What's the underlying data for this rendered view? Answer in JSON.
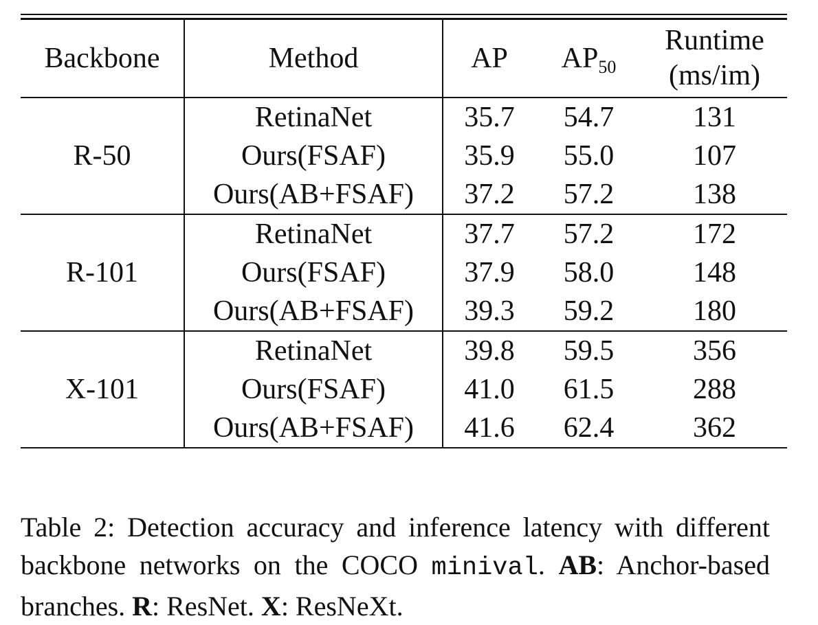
{
  "table": {
    "headers": {
      "backbone": "Backbone",
      "method": "Method",
      "ap": "AP",
      "ap50_base": "AP",
      "ap50_sub": "50",
      "runtime_line1": "Runtime",
      "runtime_line2": "(ms/im)"
    },
    "groups": [
      {
        "backbone": "R-50",
        "rows": [
          {
            "method": "RetinaNet",
            "ap": "35.7",
            "ap50": "54.7",
            "runtime": "131"
          },
          {
            "method": "Ours(FSAF)",
            "ap": "35.9",
            "ap50": "55.0",
            "runtime": "107"
          },
          {
            "method": "Ours(AB+FSAF)",
            "ap": "37.2",
            "ap50": "57.2",
            "runtime": "138"
          }
        ]
      },
      {
        "backbone": "R-101",
        "rows": [
          {
            "method": "RetinaNet",
            "ap": "37.7",
            "ap50": "57.2",
            "runtime": "172"
          },
          {
            "method": "Ours(FSAF)",
            "ap": "37.9",
            "ap50": "58.0",
            "runtime": "148"
          },
          {
            "method": "Ours(AB+FSAF)",
            "ap": "39.3",
            "ap50": "59.2",
            "runtime": "180"
          }
        ]
      },
      {
        "backbone": "X-101",
        "rows": [
          {
            "method": "RetinaNet",
            "ap": "39.8",
            "ap50": "59.5",
            "runtime": "356"
          },
          {
            "method": "Ours(FSAF)",
            "ap": "41.0",
            "ap50": "61.5",
            "runtime": "288"
          },
          {
            "method": "Ours(AB+FSAF)",
            "ap": "41.6",
            "ap50": "62.4",
            "runtime": "362"
          }
        ]
      }
    ]
  },
  "caption": {
    "part1": "Table 2: Detection accuracy and inference latency with different backbone networks on the COCO ",
    "mono": "minival",
    "part2": ". ",
    "ab_bold": "AB",
    "ab_text": ": Anchor-based branches. ",
    "r_bold": "R",
    "r_text": ": ResNet. ",
    "x_bold": "X",
    "x_text": ": ResNeXt."
  }
}
